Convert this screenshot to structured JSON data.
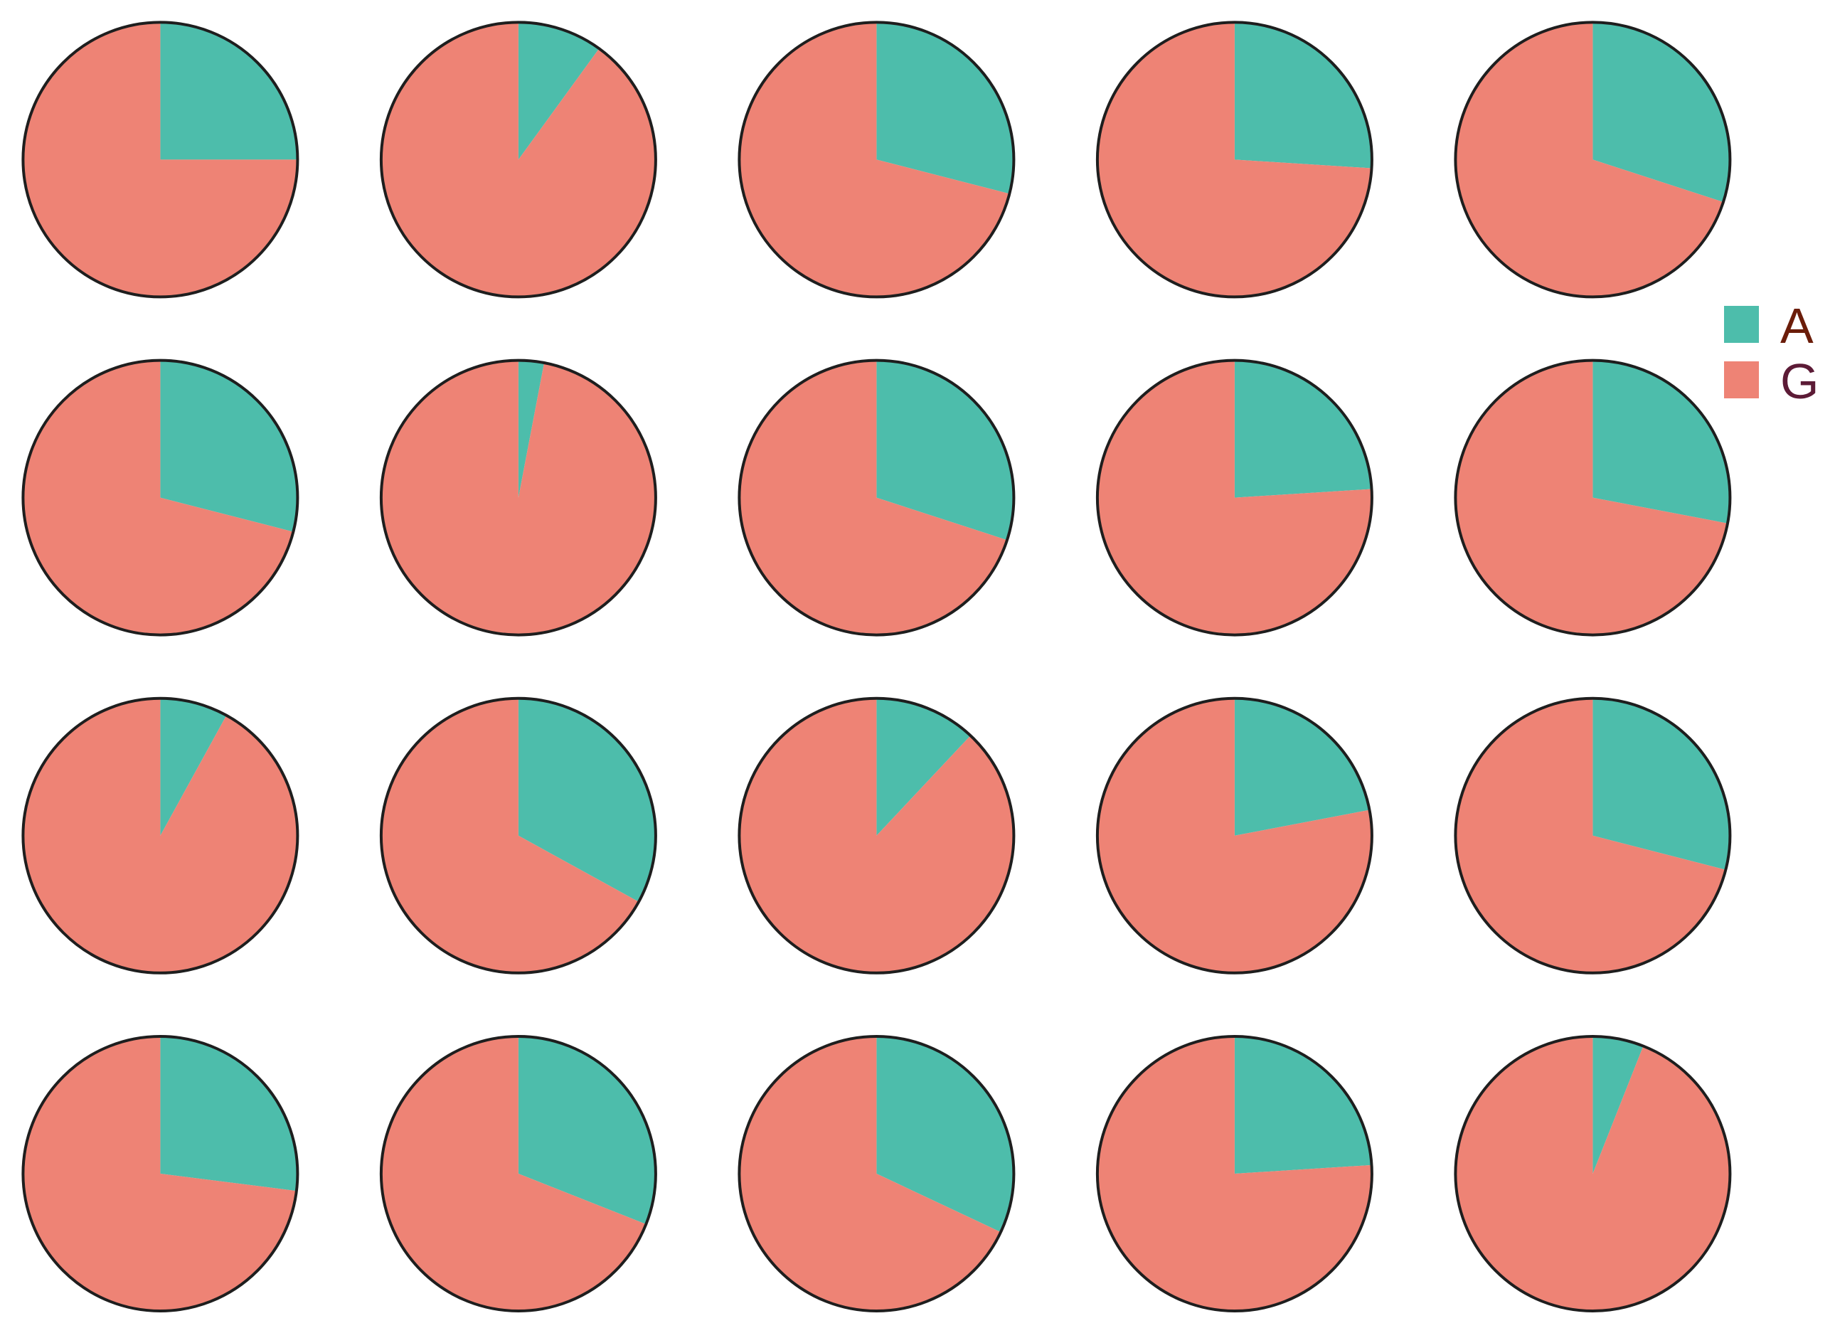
{
  "chart_data": {
    "type": "pie",
    "series": [
      {
        "name": "A",
        "color": "#4DBDAB",
        "text_color": "#6B1D0A"
      },
      {
        "name": "G",
        "color": "#EE8375",
        "text_color": "#5C1B36"
      }
    ],
    "legend": {
      "position": "right"
    },
    "outline_color": "#1E1E1E",
    "pies": [
      {
        "values": [
          0.25,
          0.75
        ]
      },
      {
        "values": [
          0.1,
          0.9
        ]
      },
      {
        "values": [
          0.29,
          0.71
        ]
      },
      {
        "values": [
          0.26,
          0.74
        ]
      },
      {
        "values": [
          0.3,
          0.7
        ]
      },
      {
        "values": [
          0.29,
          0.71
        ]
      },
      {
        "values": [
          0.03,
          0.97
        ]
      },
      {
        "values": [
          0.3,
          0.7
        ]
      },
      {
        "values": [
          0.24,
          0.76
        ]
      },
      {
        "values": [
          0.28,
          0.72
        ]
      },
      {
        "values": [
          0.08,
          0.92
        ]
      },
      {
        "values": [
          0.33,
          0.67
        ]
      },
      {
        "values": [
          0.12,
          0.88
        ]
      },
      {
        "values": [
          0.22,
          0.78
        ]
      },
      {
        "values": [
          0.29,
          0.71
        ]
      },
      {
        "values": [
          0.27,
          0.73
        ]
      },
      {
        "values": [
          0.31,
          0.69
        ]
      },
      {
        "values": [
          0.32,
          0.68
        ]
      },
      {
        "values": [
          0.24,
          0.76
        ]
      },
      {
        "values": [
          0.06,
          0.94
        ]
      }
    ]
  }
}
